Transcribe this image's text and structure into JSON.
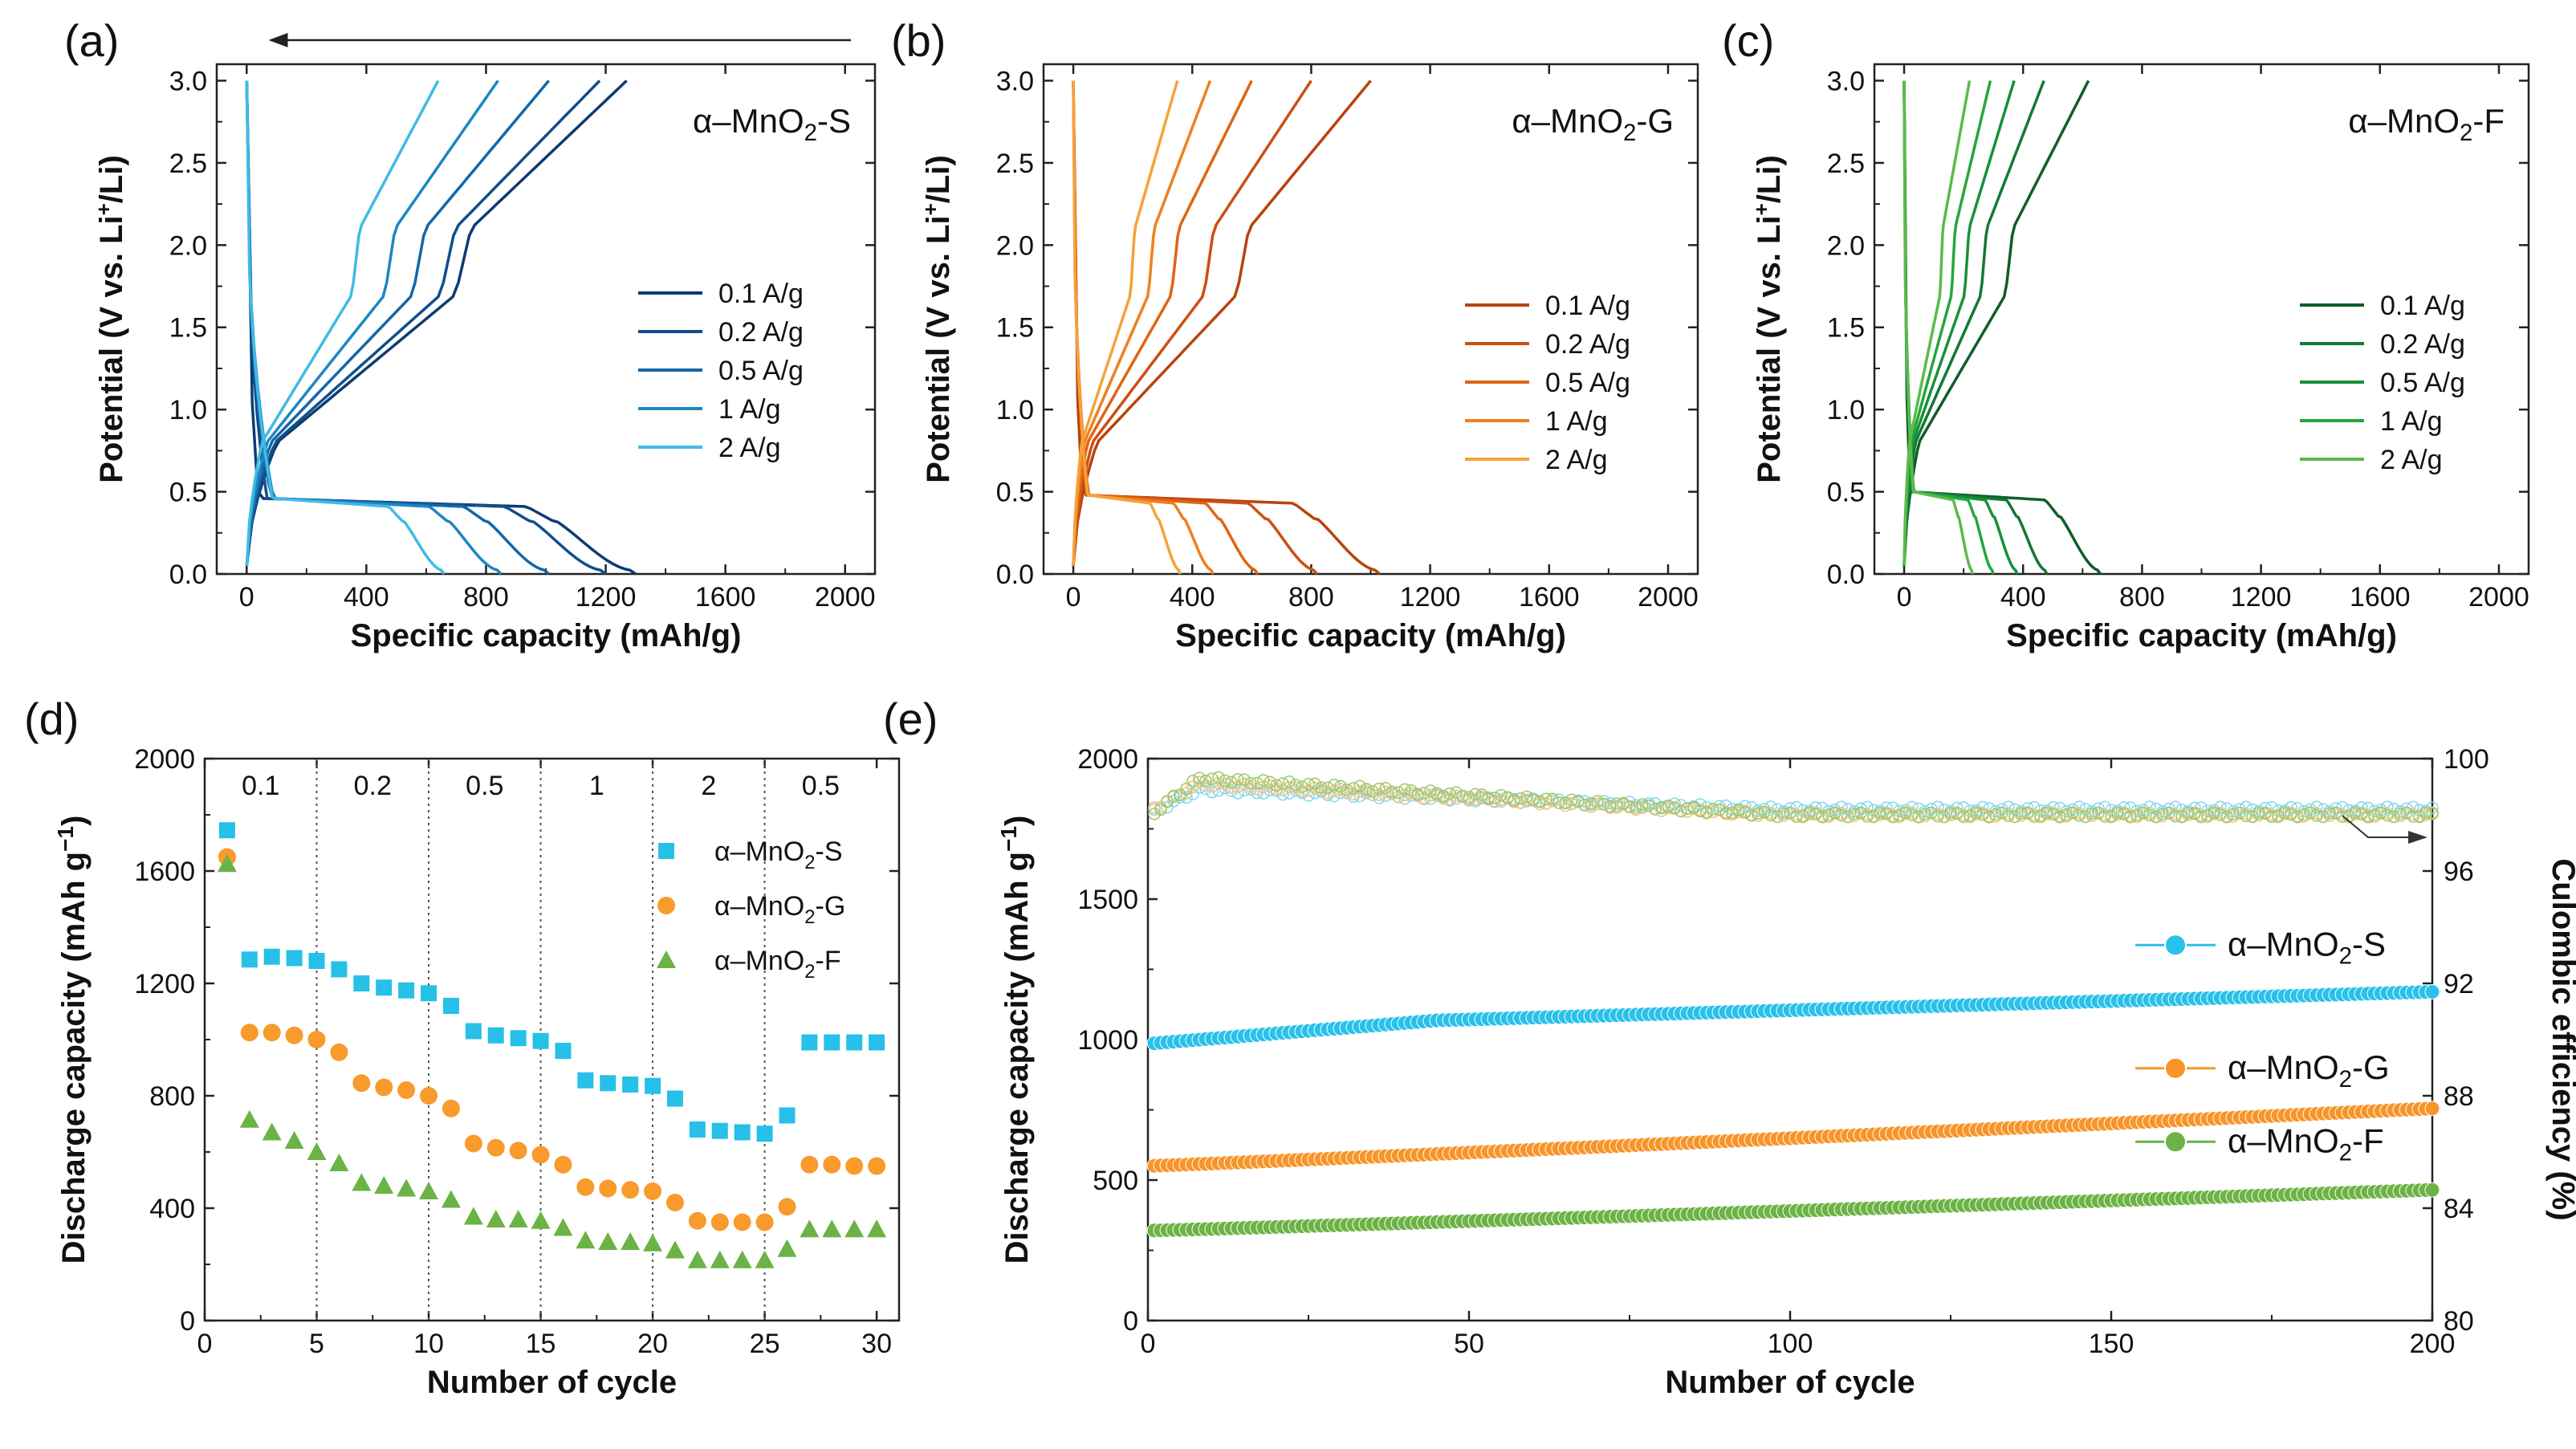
{
  "colors": {
    "S": [
      "#0d3b72",
      "#104f8c",
      "#1367a8",
      "#1d86c4",
      "#3fbbe6"
    ],
    "G": [
      "#b8430d",
      "#cc4f12",
      "#e06413",
      "#f07f1e",
      "#f5a23a"
    ],
    "F": [
      "#0f5e2a",
      "#127a32",
      "#16913a",
      "#25a63e",
      "#5cba4a"
    ],
    "rate": {
      "S": "#26c0e8",
      "G": "#f89a2c",
      "F": "#6ab344"
    },
    "cyc": {
      "S": "#29c1ea",
      "G": "#f7952a",
      "F": "#6cb345"
    },
    "eff": {
      "S": "#7fd8f0",
      "G": "#f7bf7a",
      "F": "#9cc86c"
    }
  },
  "chart_data": [
    {
      "type": "line",
      "panel": "(a)",
      "title": "α–MnO2-S",
      "xlabel": "Specific capacity (mAh/g)",
      "ylabel": "Potential (V vs. Li+/Li)",
      "xlim": [
        -100,
        2100
      ],
      "ylim": [
        0,
        3.1
      ],
      "xticks": [
        "0",
        "400",
        "800",
        "1200",
        "1600",
        "2000"
      ],
      "yticks": [
        "0.0",
        "0.5",
        "1.0",
        "1.5",
        "2.0",
        "2.5",
        "3.0"
      ],
      "arrow": "pointing left",
      "series": [
        {
          "name": "0.1 A/g",
          "discharge_capacity": 1300,
          "charge_capacity": 1270
        },
        {
          "name": "0.2 A/g",
          "discharge_capacity": 1200,
          "charge_capacity": 1180
        },
        {
          "name": "0.5 A/g",
          "discharge_capacity": 1010,
          "charge_capacity": 1010
        },
        {
          "name": "1 A/g",
          "discharge_capacity": 850,
          "charge_capacity": 840
        },
        {
          "name": "2 A/g",
          "discharge_capacity": 660,
          "charge_capacity": 640
        }
      ]
    },
    {
      "type": "line",
      "panel": "(b)",
      "title": "α–MnO2-G",
      "xlabel": "Specific capacity (mAh/g)",
      "ylabel": "Potential (V vs. Li+/Li)",
      "xlim": [
        -100,
        2100
      ],
      "ylim": [
        0,
        3.1
      ],
      "xticks": [
        "0",
        "400",
        "800",
        "1200",
        "1600",
        "2000"
      ],
      "yticks": [
        "0.0",
        "0.5",
        "1.0",
        "1.5",
        "2.0",
        "2.5",
        "3.0"
      ],
      "series": [
        {
          "name": "0.1 A/g",
          "discharge_capacity": 1030,
          "charge_capacity": 1000
        },
        {
          "name": "0.2 A/g",
          "discharge_capacity": 820,
          "charge_capacity": 800
        },
        {
          "name": "0.5 A/g",
          "discharge_capacity": 620,
          "charge_capacity": 600
        },
        {
          "name": "1 A/g",
          "discharge_capacity": 470,
          "charge_capacity": 460
        },
        {
          "name": "2 A/g",
          "discharge_capacity": 360,
          "charge_capacity": 350
        }
      ]
    },
    {
      "type": "line",
      "panel": "(c)",
      "title": "α–MnO2-F",
      "xlabel": "Specific capacity (mAh/g)",
      "ylabel": "Potential (V vs. Li+/Li)",
      "xlim": [
        -100,
        2100
      ],
      "ylim": [
        0,
        3.1
      ],
      "xticks": [
        "0",
        "400",
        "800",
        "1200",
        "1600",
        "2000"
      ],
      "yticks": [
        "0.0",
        "0.5",
        "1.0",
        "1.5",
        "2.0",
        "2.5",
        "3.0"
      ],
      "series": [
        {
          "name": "0.1 A/g",
          "discharge_capacity": 660,
          "charge_capacity": 620
        },
        {
          "name": "0.2 A/g",
          "discharge_capacity": 480,
          "charge_capacity": 470
        },
        {
          "name": "0.5 A/g",
          "discharge_capacity": 380,
          "charge_capacity": 370
        },
        {
          "name": "1 A/g",
          "discharge_capacity": 300,
          "charge_capacity": 290
        },
        {
          "name": "2 A/g",
          "discharge_capacity": 230,
          "charge_capacity": 220
        }
      ]
    },
    {
      "type": "scatter",
      "panel": "(d)",
      "xlabel": "Number of cycle",
      "ylabel": "Discharge capacity (mAh g⁻¹)",
      "xlim": [
        0,
        31
      ],
      "ylim": [
        0,
        2000
      ],
      "xticks": [
        "0",
        "5",
        "10",
        "15",
        "20",
        "25",
        "30"
      ],
      "yticks": [
        "0",
        "400",
        "800",
        "1200",
        "1600",
        "2000"
      ],
      "segments": [
        "0.1",
        "0.2",
        "0.5",
        "1",
        "2",
        "0.5"
      ],
      "x": [
        1,
        2,
        3,
        4,
        5,
        6,
        7,
        8,
        9,
        10,
        11,
        12,
        13,
        14,
        15,
        16,
        17,
        18,
        19,
        20,
        21,
        22,
        23,
        24,
        25,
        26,
        27,
        28,
        29,
        30
      ],
      "series": [
        {
          "name": "α–MnO2-S",
          "marker": "square",
          "values": [
            1745,
            1285,
            1295,
            1290,
            1280,
            1250,
            1200,
            1185,
            1175,
            1165,
            1120,
            1030,
            1015,
            1005,
            995,
            960,
            855,
            845,
            840,
            835,
            790,
            680,
            675,
            670,
            665,
            730,
            990,
            990,
            990,
            990
          ]
        },
        {
          "name": "α–MnO2-G",
          "marker": "circle",
          "values": [
            1650,
            1025,
            1025,
            1015,
            1000,
            955,
            845,
            830,
            820,
            800,
            755,
            630,
            615,
            605,
            590,
            555,
            475,
            470,
            465,
            460,
            420,
            355,
            350,
            350,
            350,
            405,
            555,
            555,
            550,
            550
          ]
        },
        {
          "name": "α–MnO2-F",
          "marker": "triangle",
          "values": [
            1625,
            715,
            670,
            640,
            600,
            560,
            490,
            480,
            470,
            460,
            430,
            370,
            360,
            360,
            355,
            330,
            285,
            280,
            280,
            275,
            250,
            215,
            215,
            215,
            215,
            255,
            325,
            325,
            325,
            325
          ]
        }
      ]
    },
    {
      "type": "scatter",
      "panel": "(e)",
      "xlabel": "Number of cycle",
      "ylabel": "Discharge capacity (mAh g⁻¹)",
      "ylabel_right": "Culombic efficiency (%)",
      "xlim": [
        0,
        200
      ],
      "ylim": [
        0,
        2000
      ],
      "ylim_right": [
        80,
        100
      ],
      "xticks": [
        "0",
        "50",
        "100",
        "150",
        "200"
      ],
      "yticks": [
        "0",
        "500",
        "1000",
        "1500",
        "2000"
      ],
      "yticks_right": [
        "80",
        "84",
        "88",
        "92",
        "96",
        "100"
      ],
      "cycles": 200,
      "series": [
        {
          "name": "α–MnO2-S",
          "capacity_start": 985,
          "capacity_end": 1170,
          "efficiency_start": 98.0,
          "efficiency_plateau": 98.9,
          "efficiency_end": 98.2
        },
        {
          "name": "α–MnO2-G",
          "capacity_start": 550,
          "capacity_end": 755,
          "efficiency_start": 98.1,
          "efficiency_plateau": 99.1,
          "efficiency_end": 98.0
        },
        {
          "name": "α–MnO2-F",
          "capacity_start": 320,
          "capacity_end": 465,
          "efficiency_start": 97.9,
          "efficiency_plateau": 99.3,
          "efficiency_end": 98.0
        }
      ]
    }
  ]
}
